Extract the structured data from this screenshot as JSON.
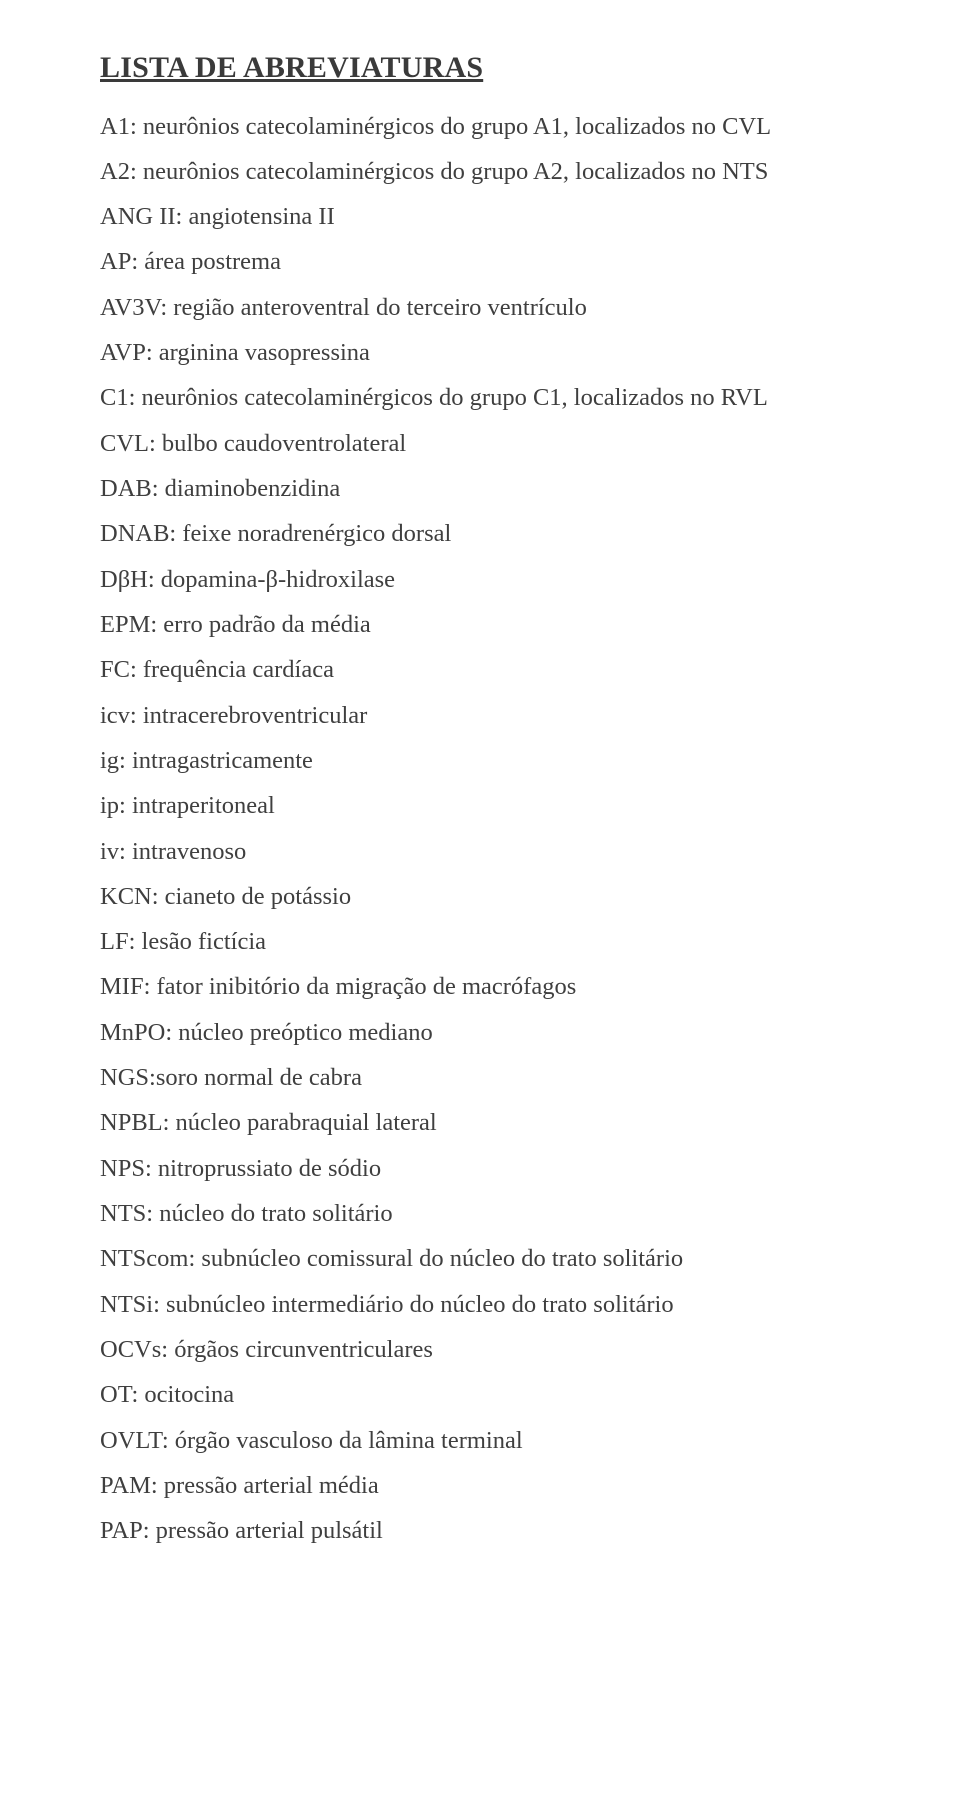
{
  "document": {
    "type": "document",
    "title": "LISTA DE ABREVIATURAS",
    "background_color": "#ffffff",
    "text_color": "#3f3f3f",
    "title_fontsize": 30,
    "body_fontsize": 24.5,
    "font_family": "Times New Roman",
    "line_height": 1.85,
    "items": [
      "A1: neurônios catecolaminérgicos do grupo A1, localizados no CVL",
      "A2: neurônios catecolaminérgicos do grupo A2, localizados no NTS",
      "ANG II: angiotensina II",
      "AP: área postrema",
      "AV3V: região anteroventral do terceiro ventrículo",
      "AVP: arginina vasopressina",
      "C1: neurônios catecolaminérgicos do grupo C1, localizados no RVL",
      "CVL: bulbo caudoventrolateral",
      "DAB: diaminobenzidina",
      "DNAB: feixe noradrenérgico dorsal",
      "DβH: dopamina-β-hidroxilase",
      "EPM: erro padrão da média",
      "FC: frequência cardíaca",
      "icv: intracerebroventricular",
      "ig: intragastricamente",
      "ip: intraperitoneal",
      "iv: intravenoso",
      "KCN: cianeto de potássio",
      "LF: lesão fictícia",
      "MIF: fator inibitório da migração de macrófagos",
      "MnPO: núcleo preóptico mediano",
      "NGS:soro normal de cabra",
      "NPBL: núcleo parabraquial lateral",
      "NPS: nitroprussiato de sódio",
      "NTS: núcleo do trato solitário",
      "NTScom: subnúcleo comissural do núcleo do trato solitário",
      "NTSi: subnúcleo intermediário do núcleo do trato solitário",
      "OCVs: órgãos circunventriculares",
      "OT: ocitocina",
      "OVLT: órgão vasculoso da lâmina terminal",
      "PAM: pressão arterial média",
      "PAP: pressão arterial pulsátil"
    ]
  }
}
